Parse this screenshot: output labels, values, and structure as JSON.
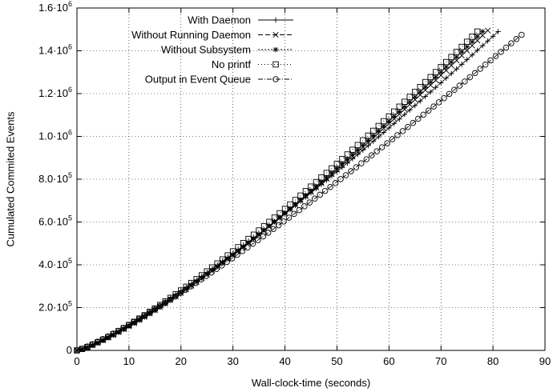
{
  "chart_data": {
    "type": "line",
    "xlabel": "Wall-clock-time (seconds)",
    "ylabel": "Cumulated Commited Events",
    "xlim": [
      0,
      90
    ],
    "ylim": [
      0,
      1600000
    ],
    "grid": true,
    "legend_position": "top-left",
    "x_ticks": [
      {
        "value": 0,
        "label": "0"
      },
      {
        "value": 10,
        "label": "10"
      },
      {
        "value": 20,
        "label": "20"
      },
      {
        "value": 30,
        "label": "30"
      },
      {
        "value": 40,
        "label": "40"
      },
      {
        "value": 50,
        "label": "50"
      },
      {
        "value": 60,
        "label": "60"
      },
      {
        "value": 70,
        "label": "70"
      },
      {
        "value": 80,
        "label": "80"
      },
      {
        "value": 90,
        "label": "90"
      }
    ],
    "y_ticks": [
      {
        "value": 0,
        "label": "0",
        "mantissa": "",
        "exponent": ""
      },
      {
        "value": 200000,
        "label": "",
        "mantissa": "2.0·10",
        "exponent": "5"
      },
      {
        "value": 400000,
        "label": "",
        "mantissa": "4.0·10",
        "exponent": "5"
      },
      {
        "value": 600000,
        "label": "",
        "mantissa": "6.0·10",
        "exponent": "5"
      },
      {
        "value": 800000,
        "label": "",
        "mantissa": "8.0·10",
        "exponent": "5"
      },
      {
        "value": 1000000,
        "label": "",
        "mantissa": "1.0·10",
        "exponent": "6"
      },
      {
        "value": 1200000,
        "label": "",
        "mantissa": "1.2·10",
        "exponent": "6"
      },
      {
        "value": 1400000,
        "label": "",
        "mantissa": "1.4·10",
        "exponent": "6"
      },
      {
        "value": 1600000,
        "label": "",
        "mantissa": "1.6·10",
        "exponent": "6"
      }
    ],
    "series": [
      {
        "name": "With Daemon",
        "marker": "plus",
        "dash": "none",
        "x_end": 81,
        "y_end": 1490000,
        "exponent": 1.2
      },
      {
        "name": "Without Running Daemon",
        "marker": "cross",
        "dash": "6,3",
        "x_end": 79,
        "y_end": 1495000,
        "exponent": 1.25
      },
      {
        "name": "Without Subsystem",
        "marker": "star",
        "dash": "2,2",
        "x_end": 78,
        "y_end": 1490000,
        "exponent": 1.26
      },
      {
        "name": "No printf",
        "marker": "square",
        "dash": "1,3",
        "x_end": 77,
        "y_end": 1490000,
        "exponent": 1.24
      },
      {
        "name": "Output in Event Queue",
        "marker": "circle",
        "dash": "6,2,1,2",
        "x_end": 85.5,
        "y_end": 1475000,
        "exponent": 1.17
      }
    ]
  }
}
